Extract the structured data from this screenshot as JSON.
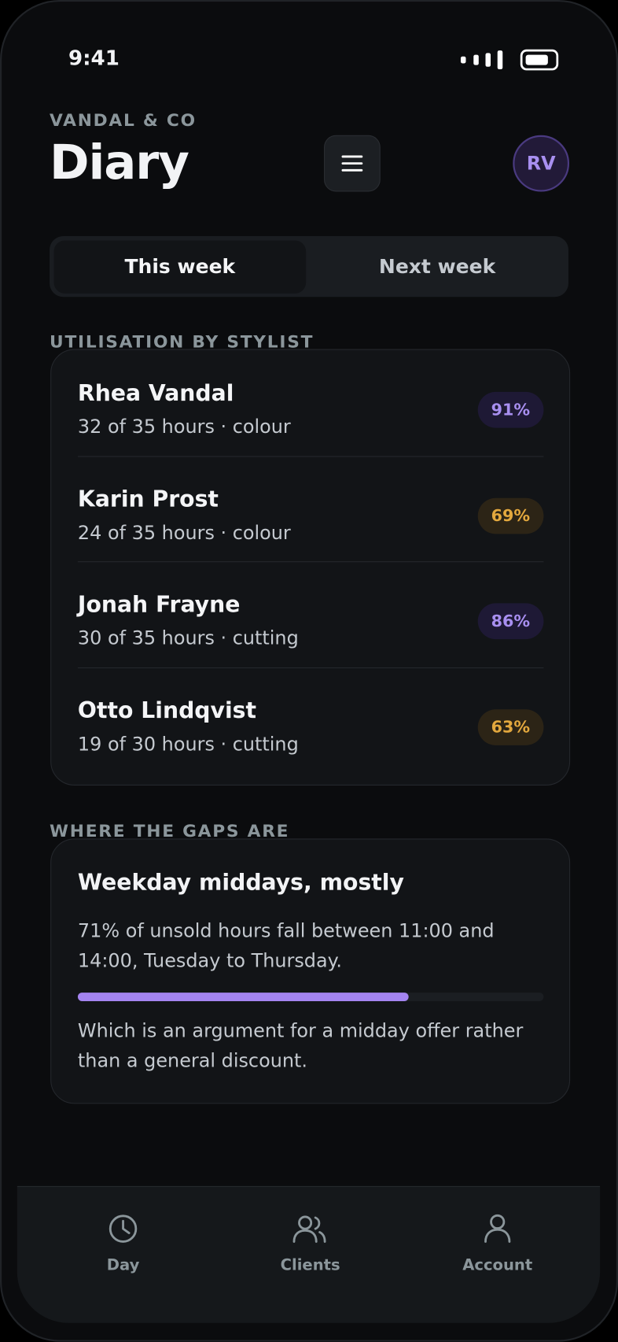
{
  "status_bar": {
    "time": "9:41"
  },
  "header": {
    "brand": "VANDAL & CO",
    "title": "Diary",
    "avatar": "RV"
  },
  "tabs": [
    "This week",
    "Next week"
  ],
  "utilisation": {
    "heading": "UTILISATION BY STYLIST",
    "stylists": [
      {
        "name": "Rhea Vandal",
        "detail": "32 of 35 hours · colour",
        "badge": "91%",
        "color": "#a88ff0",
        "badge_bg": "#1e1935"
      },
      {
        "name": "Karin Prost",
        "detail": "24 of 35 hours · colour",
        "badge": "69%",
        "color": "#e3a83e",
        "badge_bg": "#2c2416"
      },
      {
        "name": "Jonah Frayne",
        "detail": "30 of 35 hours · cutting",
        "badge": "86%",
        "color": "#a88ff0",
        "badge_bg": "#1e1935"
      },
      {
        "name": "Otto Lindqvist",
        "detail": "19 of 30 hours · cutting",
        "badge": "63%",
        "color": "#e3a83e",
        "badge_bg": "#2c2416"
      }
    ]
  },
  "gaps": {
    "heading": "WHERE THE GAPS ARE",
    "title": "Weekday middays, mostly",
    "body": "71% of unsold hours fall between 11:00 and 14:00, Tuesday to Thursday.",
    "share": 71,
    "bar_color": "#a484f0",
    "note": "Which is an argument for a midday offer rather than a general discount."
  },
  "nav": [
    "Day",
    "Clients",
    "Account"
  ]
}
